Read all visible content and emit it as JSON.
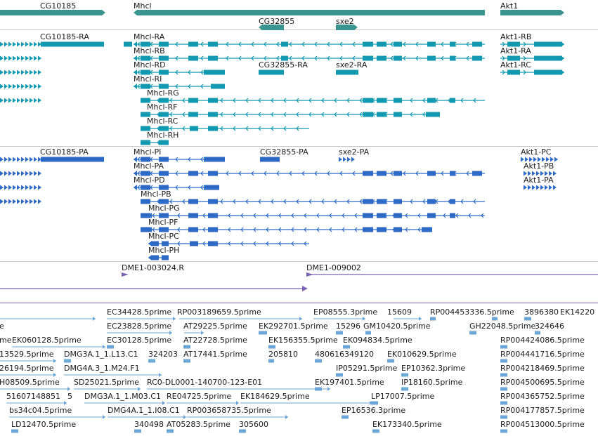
{
  "colors": {
    "gene": "#3a9590",
    "transcript_a": "#1199b0",
    "transcript_b": "#2c6ac6",
    "contig": "#7b62b3",
    "est": "#6aa6d6",
    "separator": "#c8c8c8"
  },
  "tracks": {
    "genes": {
      "labels": [
        "CG10185",
        "Mhcl",
        "Akt1",
        "CG32855",
        "sxe2"
      ]
    },
    "transcripts_a": {
      "labels": [
        "CG10185-RA",
        "Mhcl-RA",
        "Akt1-RB",
        "Mhcl-RB",
        "Akt1-RA",
        "Mhcl-RD",
        "CG32855-RA",
        "sxe2-RA",
        "Akt1-RC",
        "Mhcl-RI",
        "Mhcl-RG",
        "Mhcl-RF",
        "Mhcl-RC",
        "Mhcl-RH"
      ]
    },
    "transcripts_b": {
      "labels": [
        "CG10185-PA",
        "Mhcl-PI",
        "CG32855-PA",
        "sxe2-PA",
        "Akt1-PC",
        "Mhcl-PA",
        "Akt1-PB",
        "Mhcl-PD",
        "Akt1-PA",
        "Mhcl-PB",
        "Mhcl-PG",
        "Mhcl-PF",
        "Mhcl-PC",
        "Mhcl-PH"
      ]
    },
    "contigs": {
      "labels": [
        "DME1-003024.R",
        "DME1-009002"
      ]
    },
    "ests": {
      "labels": [
        "EC34428.5prime",
        "RP003189659.5prime",
        "EP08555.3prime",
        "15609",
        "RP004453336.5prime",
        "3896380",
        "EK14220",
        "e",
        "EC23828.5prime",
        "AT29225.5prime",
        "EK292701.5prime",
        "15296",
        "GM10420.5prime",
        "GH22048.5prime",
        "324646",
        "me",
        "EK060128.5prime",
        "EC30128.5prime",
        "AT22728.5prime",
        "EK156355.5prime",
        "EK094834.5prime",
        "RP004424086.5prime",
        "13529.5prime",
        "DMG3A.1_1.L13.C1",
        "324203",
        "AT17441.5prime",
        "205810",
        "480616349120",
        "EK010629.5prime",
        "RP004441716.5prime",
        "26194.5prime",
        "DMG4A.3_1.M24.F1",
        "IP05291.5prime",
        "EP10362.3prime",
        "RP004218469.5prime",
        "H08509.5prime",
        "SD25021.5prime",
        "RC0-DL0001-140700-123-E01",
        "EK197401.5prime",
        "IP18160.5prime",
        "RP004500695.5prime",
        "51607148851",
        "5",
        "DMG3A.1_1.M03.C1",
        "RE04725.5prime",
        "EK184629.5prime",
        "LP17007.5prime",
        "RP004365752.5prime",
        "bs34c04.5prime",
        "DMG4A.1_1.I08.C1",
        "RP003658735.5prime",
        "EP16536.3prime",
        "RP004177857.5prime",
        "LD12470.5prime",
        "340498",
        "AT05283.5prime",
        "305600",
        "EK173340.5prime",
        "RP004513000.5prime"
      ]
    }
  }
}
